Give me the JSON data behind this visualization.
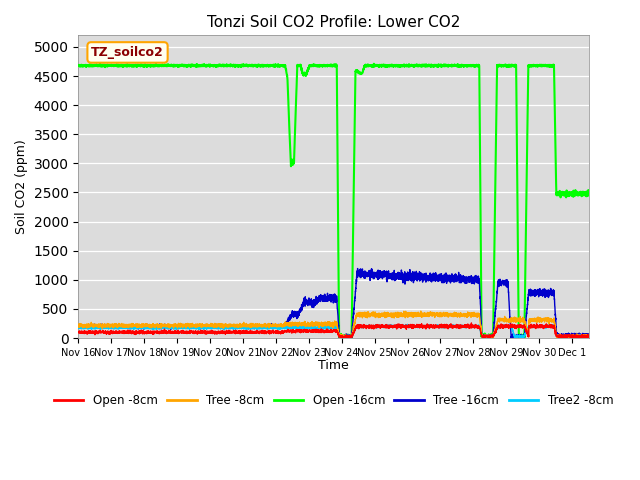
{
  "title": "Tonzi Soil CO2 Profile: Lower CO2",
  "ylabel": "Soil CO2 (ppm)",
  "xlabel": "Time",
  "ylim": [
    0,
    5200
  ],
  "yticks": [
    0,
    500,
    1000,
    1500,
    2000,
    2500,
    3000,
    3500,
    4000,
    4500,
    5000
  ],
  "xlim_days": 15.5,
  "background_color": "#dcdcdc",
  "series": {
    "open_8cm": {
      "label": "Open -8cm",
      "color": "#ff0000",
      "linewidth": 1.0
    },
    "tree_8cm": {
      "label": "Tree -8cm",
      "color": "#ffa500",
      "linewidth": 1.0
    },
    "open_16cm": {
      "label": "Open -16cm",
      "color": "#00ff00",
      "linewidth": 1.5
    },
    "tree_16cm": {
      "label": "Tree -16cm",
      "color": "#0000cc",
      "linewidth": 1.0
    },
    "tree2_8cm": {
      "label": "Tree2 -8cm",
      "color": "#00ccff",
      "linewidth": 1.0
    }
  },
  "tick_labels": [
    "Nov 16",
    "Nov 17",
    "Nov 18",
    "Nov 19",
    "Nov 20",
    "Nov 21",
    "Nov 22",
    "Nov 23",
    "Nov 24",
    "Nov 25",
    "Nov 26",
    "Nov 27",
    "Nov 28",
    "Nov 29",
    "Nov 30",
    "Dec 1"
  ],
  "watermark": "TZ_soilco2",
  "watermark_color": "#8b0000",
  "watermark_bg": "#fffff0",
  "watermark_border": "#ffa500"
}
